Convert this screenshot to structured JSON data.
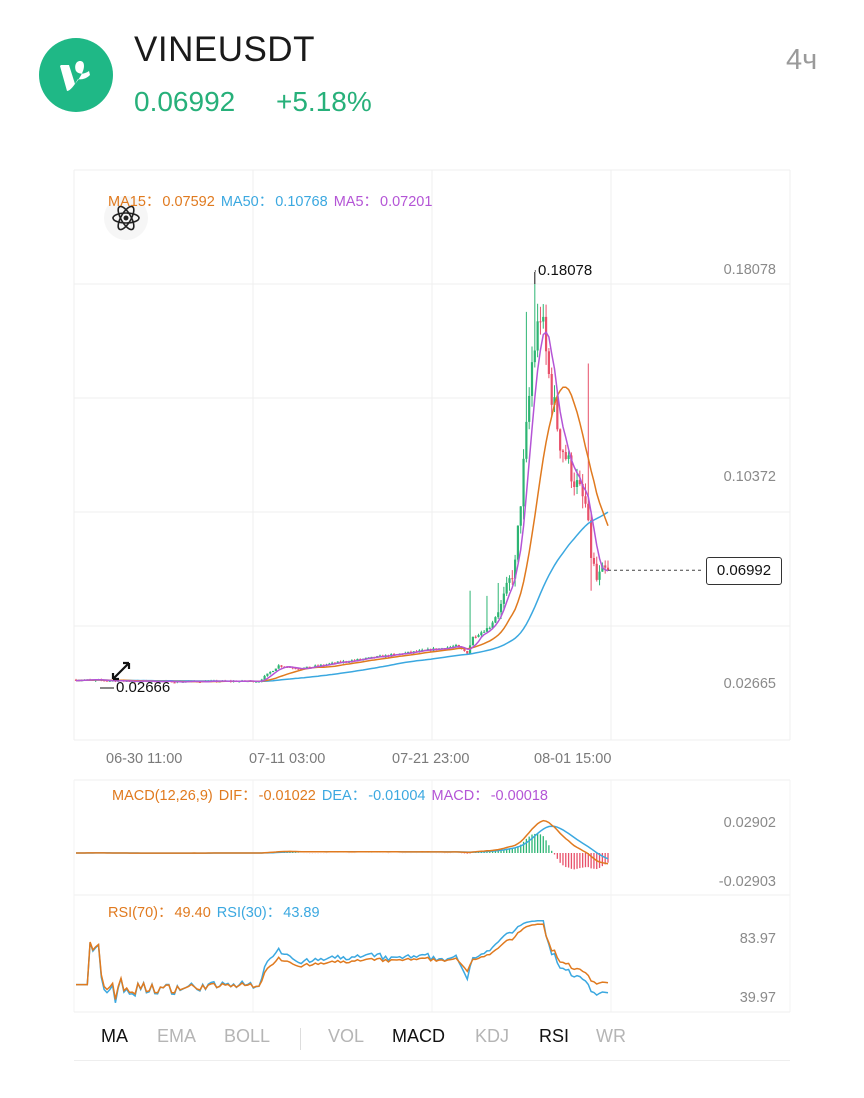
{
  "header": {
    "symbol": "VINEUSDT",
    "price": "0.06992",
    "change": "+5.18%",
    "timeframe": "4ч",
    "logo_icon": "vine-logo-icon",
    "accent_color": "#27b07a"
  },
  "main_legend": {
    "ma15_label": "MA15：",
    "ma15_value": "0.07592",
    "ma50_label": "MA50：",
    "ma50_value": "0.10768",
    "ma5_label": "MA5：",
    "ma5_value": "0.07201",
    "colors": {
      "ma15": "#e07a1f",
      "ma50": "#3ba8e0",
      "ma5": "#b455d6"
    }
  },
  "macd_legend": {
    "title": "MACD(12,26,9)",
    "dif_label": "DIF：",
    "dif_value": "-0.01022",
    "dea_label": "DEA：",
    "dea_value": "-0.01004",
    "macd_label": "MACD：",
    "macd_value": "-0.00018"
  },
  "rsi_legend": {
    "rsi70_label": "RSI(70)：",
    "rsi70_value": "49.40",
    "rsi30_label": "RSI(30)：",
    "rsi30_value": "43.89"
  },
  "y_axis": {
    "main_ticks": [
      "0.18078",
      "0.10372",
      "0.02665"
    ],
    "macd_ticks": [
      "0.02902",
      "-0.02903"
    ],
    "rsi_ticks": [
      "83.97",
      "39.97"
    ]
  },
  "x_axis": {
    "ticks": [
      "06-30 11:00",
      "07-11 03:00",
      "07-21 23:00",
      "08-01 15:00"
    ]
  },
  "annotations": {
    "high_label": "0.18078",
    "low_label": "0.02666",
    "current_price": "0.06992"
  },
  "indicator_tabs": [
    {
      "label": "MA",
      "active": true
    },
    {
      "label": "EMA",
      "active": false
    },
    {
      "label": "BOLL",
      "active": false
    },
    {
      "label": "VOL",
      "active": false
    },
    {
      "label": "MACD",
      "active": true
    },
    {
      "label": "KDJ",
      "active": false
    },
    {
      "label": "RSI",
      "active": true
    },
    {
      "label": "WR",
      "active": false
    }
  ],
  "chart_data": {
    "type": "line",
    "title": "VINEUSDT",
    "interval": "4ч",
    "x": [
      "06-30 11:00",
      "07-11 03:00",
      "07-21 23:00",
      "08-01 15:00"
    ],
    "price_ylim": [
      0.02665,
      0.18078
    ],
    "price_series": [
      {
        "name": "MA15",
        "color": "#e07a1f",
        "values_approx": [
          0.027,
          0.0268,
          0.027,
          0.033,
          0.0365,
          0.0385,
          0.042,
          0.062,
          0.135,
          0.11,
          0.076
        ]
      },
      {
        "name": "MA50",
        "color": "#3ba8e0",
        "values_approx": [
          0.0268,
          0.0266,
          0.0268,
          0.029,
          0.032,
          0.0345,
          0.039,
          0.047,
          0.085,
          0.103,
          0.1077
        ]
      },
      {
        "name": "MA5",
        "color": "#b455d6",
        "values_approx": [
          0.0272,
          0.0268,
          0.0272,
          0.034,
          0.037,
          0.0395,
          0.0425,
          0.09,
          0.16,
          0.098,
          0.072
        ]
      }
    ],
    "high": 0.18078,
    "low": 0.02666,
    "last": 0.06992,
    "macd": {
      "params": "12,26,9",
      "dif": -0.01022,
      "dea": -0.01004,
      "macd": -0.00018,
      "ylim": [
        -0.02903,
        0.02902
      ]
    },
    "rsi": {
      "rsi70": 49.4,
      "rsi30": 43.89,
      "ticks": [
        83.97,
        39.97
      ]
    },
    "grid": true,
    "up_color": "#2db573",
    "down_color": "#e8506a"
  }
}
